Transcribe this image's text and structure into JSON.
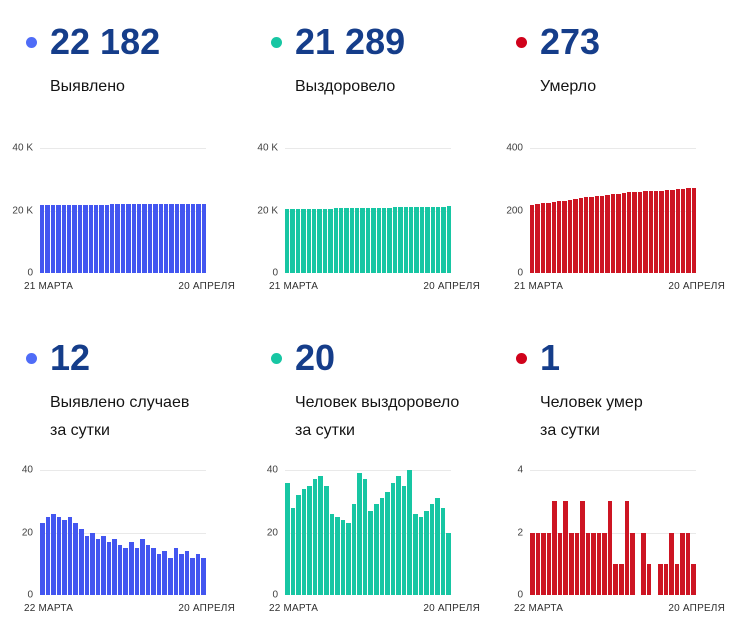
{
  "colors": {
    "stat_value": "#153d8a",
    "gridline": "#e9e9e9",
    "axis_text": "#3f3f3f"
  },
  "panels": [
    {
      "id": "total-detected",
      "value": "22 182",
      "label": "Выявлено",
      "dot_color": "#4f6cf7"
    },
    {
      "id": "total-recovered",
      "value": "21 289",
      "label": "Выздоровело",
      "dot_color": "#17c6a3"
    },
    {
      "id": "total-deaths",
      "value": "273",
      "label": "Умерло",
      "dot_color": "#d0021b"
    },
    {
      "id": "daily-detected",
      "value": "12",
      "label": "Выявлено случаев\nза сутки",
      "dot_color": "#4f6cf7"
    },
    {
      "id": "daily-recovered",
      "value": "20",
      "label": "Человек выздоровело\nза сутки",
      "dot_color": "#17c6a3"
    },
    {
      "id": "daily-deaths",
      "value": "1",
      "label": "Человек умер\nза сутки",
      "dot_color": "#d0021b"
    }
  ],
  "chart_data": [
    {
      "type": "bar",
      "title": "Выявлено (всего)",
      "color": "#4356f0",
      "ylim": [
        0,
        40000
      ],
      "yticks": [
        "40 K",
        "20 K",
        "0"
      ],
      "x_start_label": "21 МАРТА",
      "x_end_label": "20 АПРЕЛЯ",
      "grid": "horizontal",
      "legend": "none",
      "values": [
        21649,
        21672,
        21697,
        21723,
        21748,
        21772,
        21797,
        21820,
        21841,
        21860,
        21880,
        21898,
        21917,
        21934,
        21952,
        21968,
        21983,
        22000,
        22015,
        22033,
        22049,
        22064,
        22077,
        22091,
        22103,
        22118,
        22131,
        22145,
        22157,
        22170,
        22182
      ]
    },
    {
      "type": "bar",
      "title": "Выздоровело (всего)",
      "color": "#17c6a3",
      "ylim": [
        0,
        40000
      ],
      "yticks": [
        "40 K",
        "20 K",
        "0"
      ],
      "x_start_label": "21 МАРТА",
      "x_end_label": "20 АПРЕЛЯ",
      "grid": "horizontal",
      "legend": "none",
      "values": [
        20356,
        20392,
        20420,
        20452,
        20486,
        20521,
        20558,
        20596,
        20631,
        20657,
        20682,
        20706,
        20729,
        20758,
        20797,
        20834,
        20861,
        20890,
        20921,
        20954,
        20990,
        21028,
        21063,
        21103,
        21129,
        21154,
        21181,
        21210,
        21241,
        21269,
        21289
      ]
    },
    {
      "type": "bar",
      "title": "Умерло (всего)",
      "color": "#cd1523",
      "ylim": [
        0,
        400
      ],
      "yticks": [
        "400",
        "200",
        "0"
      ],
      "x_start_label": "21 МАРТА",
      "x_end_label": "20 АПРЕЛЯ",
      "grid": "horizontal",
      "legend": "none",
      "values": [
        219,
        221,
        223,
        225,
        227,
        230,
        232,
        235,
        237,
        239,
        242,
        244,
        246,
        248,
        250,
        253,
        254,
        255,
        258,
        260,
        260,
        262,
        263,
        263,
        264,
        265,
        267,
        268,
        270,
        272,
        273
      ]
    },
    {
      "type": "bar",
      "title": "Выявлено случаев за сутки",
      "color": "#4356f0",
      "ylim": [
        0,
        40
      ],
      "yticks": [
        "40",
        "20",
        "0"
      ],
      "x_start_label": "22 МАРТА",
      "x_end_label": "20 АПРЕЛЯ",
      "grid": "horizontal",
      "legend": "none",
      "values": [
        23,
        25,
        26,
        25,
        24,
        25,
        23,
        21,
        19,
        20,
        18,
        19,
        17,
        18,
        16,
        15,
        17,
        15,
        18,
        16,
        15,
        13,
        14,
        12,
        15,
        13,
        14,
        12,
        13,
        12
      ]
    },
    {
      "type": "bar",
      "title": "Человек выздоровело за сутки",
      "color": "#17c6a3",
      "ylim": [
        0,
        40
      ],
      "yticks": [
        "40",
        "20",
        "0"
      ],
      "x_start_label": "22 МАРТА",
      "x_end_label": "20 АПРЕЛЯ",
      "grid": "horizontal",
      "legend": "none",
      "values": [
        36,
        28,
        32,
        34,
        35,
        37,
        38,
        35,
        26,
        25,
        24,
        23,
        29,
        39,
        37,
        27,
        29,
        31,
        33,
        36,
        38,
        35,
        40,
        26,
        25,
        27,
        29,
        31,
        28,
        20
      ]
    },
    {
      "type": "bar",
      "title": "Человек умер за сутки",
      "color": "#cd1523",
      "ylim": [
        0,
        4
      ],
      "yticks": [
        "4",
        "2",
        "0"
      ],
      "x_start_label": "22 МАРТА",
      "x_end_label": "20 АПРЕЛЯ",
      "grid": "horizontal",
      "legend": "none",
      "values": [
        2,
        2,
        2,
        2,
        3,
        2,
        3,
        2,
        2,
        3,
        2,
        2,
        2,
        2,
        3,
        1,
        1,
        3,
        2,
        0,
        2,
        1,
        0,
        1,
        1,
        2,
        1,
        2,
        2,
        1
      ]
    }
  ]
}
